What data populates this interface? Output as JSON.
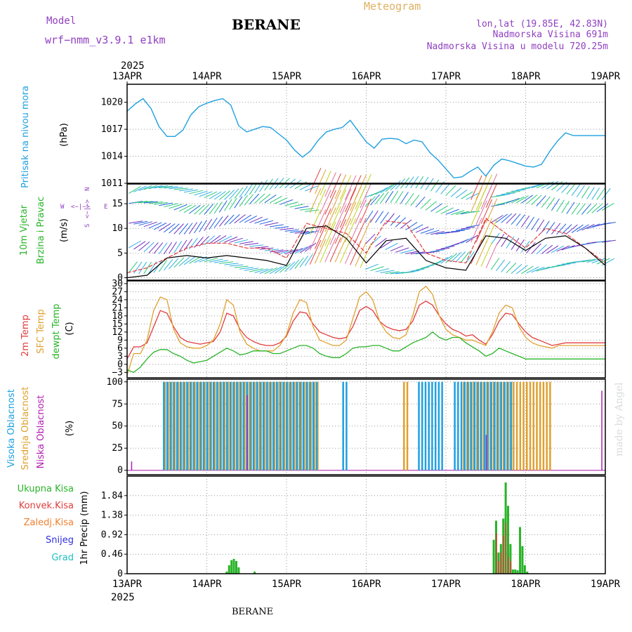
{
  "header": {
    "model_label": "Model",
    "model_name": "wrf−nmm_v3.9.1  e1km",
    "station": "BERANE",
    "product": "Meteogram",
    "coords": "lon,lat (19.85E, 42.83N)",
    "elevation": "Nadmorska Visina 691m",
    "model_elevation": "Nadmorska Visina u modelu 720.25m",
    "footer_station": "BERANE",
    "watermark": "made by Angel"
  },
  "colors": {
    "pressure": "#1fa0e0",
    "temp2m": "#e03c3c",
    "sfctemp": "#e0a030",
    "dewpt": "#28b428",
    "cloud_high": "#1fa0e0",
    "cloud_mid": "#e0a030",
    "cloud_low": "#b020b0",
    "precip_total": "#28b428",
    "precip_conv": "#e03c3c",
    "precip_frozen": "#f08030",
    "snow": "#3030e0",
    "hail": "#20c0c0",
    "title_purple": "#9040c0",
    "meteogram_orange": "#e0b060",
    "wind_gust": "#e03c3c",
    "wind_mean": "#000000"
  },
  "chart_data": [
    {
      "type": "line",
      "panel": "pressure",
      "ylabel": "Pritisak na nivou mora",
      "yunit": "(hPa)",
      "ylim": [
        1011,
        1022
      ],
      "yticks": [
        "1011",
        "1014",
        "1017",
        "1020"
      ],
      "x_day_offsets": [
        0,
        0.1,
        0.2,
        0.3,
        0.4,
        0.5,
        0.6,
        0.7,
        0.8,
        0.9,
        1.0,
        1.1,
        1.2,
        1.3,
        1.4,
        1.5,
        1.6,
        1.7,
        1.8,
        1.9,
        2.0,
        2.1,
        2.2,
        2.3,
        2.4,
        2.5,
        2.6,
        2.7,
        2.8,
        2.9,
        3.0,
        3.1,
        3.2,
        3.3,
        3.4,
        3.5,
        3.6,
        3.7,
        3.8,
        3.9,
        4.0,
        4.1,
        4.2,
        4.3,
        4.4,
        4.5,
        4.6,
        4.7,
        4.8,
        4.9,
        5.0,
        5.1,
        5.2,
        5.3,
        5.4,
        5.5,
        5.6,
        5.7,
        5.8,
        5.9,
        6.0
      ],
      "series": [
        {
          "name": "Pritisak na nivou mora",
          "values": [
            1019.0,
            1019.8,
            1020.4,
            1019.3,
            1017.3,
            1016.2,
            1016.2,
            1016.9,
            1018.6,
            1019.5,
            1019.9,
            1020.2,
            1020.4,
            1019.7,
            1017.4,
            1016.7,
            1017.0,
            1017.3,
            1017.2,
            1016.5,
            1015.8,
            1014.7,
            1013.9,
            1014.6,
            1015.8,
            1016.7,
            1017.0,
            1017.2,
            1018.0,
            1016.8,
            1015.6,
            1014.9,
            1015.9,
            1016.0,
            1015.9,
            1015.4,
            1015.8,
            1015.6,
            1014.4,
            1013.6,
            1012.6,
            1011.6,
            1011.7,
            1012.3,
            1012.8,
            1011.8,
            1013.0,
            1013.7,
            1013.5,
            1013.2,
            1012.9,
            1012.8,
            1013.1,
            1014.5,
            1015.7,
            1016.6,
            1016.3,
            1016.3,
            1016.3,
            1016.3,
            1016.3
          ]
        }
      ]
    },
    {
      "type": "line",
      "panel": "wind",
      "ylabel_line1": "10m Vjetar",
      "ylabel_line2": "Brzina i Pravac",
      "yunit": "(m/s)",
      "compass": [
        "W",
        "<−|−>",
        "E",
        "S",
        "<−|−>",
        "N"
      ],
      "ylim": [
        -0.5,
        19
      ],
      "yticks": [
        "0",
        "5",
        "10",
        "15"
      ],
      "x_day_offsets": [
        0,
        0.25,
        0.5,
        0.75,
        1.0,
        1.25,
        1.5,
        1.75,
        2.0,
        2.25,
        2.5,
        2.75,
        3.0,
        3.25,
        3.5,
        3.75,
        4.0,
        4.25,
        4.5,
        4.75,
        5.0,
        5.25,
        5.5,
        5.75,
        6.0
      ],
      "series": [
        {
          "name": "gust",
          "values": [
            1.0,
            2.0,
            4.0,
            6.0,
            7.0,
            7.0,
            6.0,
            6.0,
            4.0,
            11.0,
            10.0,
            9.0,
            5.0,
            11.5,
            11.0,
            5.0,
            3.5,
            3.0,
            12.0,
            9.0,
            6.0,
            10.0,
            9.0,
            6.0,
            3.0
          ]
        },
        {
          "name": "mean",
          "values": [
            0.0,
            0.5,
            4.0,
            4.5,
            4.0,
            4.5,
            4.0,
            3.5,
            2.5,
            10.0,
            10.5,
            8.0,
            3.0,
            7.5,
            8.0,
            3.5,
            2.0,
            1.5,
            8.5,
            8.0,
            5.5,
            8.0,
            8.5,
            6.0,
            2.5
          ]
        }
      ]
    },
    {
      "type": "line",
      "panel": "temperature",
      "ylabels": [
        "2m Temp",
        "SFC Temp",
        "dewpt Temp"
      ],
      "yunit": "(C)",
      "ylim": [
        -5,
        31
      ],
      "yticks": [
        "−3",
        "0",
        "3",
        "6",
        "9",
        "12",
        "15",
        "18",
        "21",
        "24",
        "27",
        "30"
      ],
      "x_day_offsets": [
        0,
        0.083,
        0.167,
        0.25,
        0.333,
        0.417,
        0.5,
        0.583,
        0.667,
        0.75,
        0.833,
        0.917,
        1.0,
        1.083,
        1.167,
        1.25,
        1.333,
        1.417,
        1.5,
        1.583,
        1.667,
        1.75,
        1.833,
        1.917,
        2.0,
        2.083,
        2.167,
        2.25,
        2.333,
        2.417,
        2.5,
        2.583,
        2.667,
        2.75,
        2.833,
        2.917,
        3.0,
        3.083,
        3.167,
        3.25,
        3.333,
        3.417,
        3.5,
        3.583,
        3.667,
        3.75,
        3.833,
        3.917,
        4.0,
        4.083,
        4.167,
        4.25,
        4.333,
        4.417,
        4.5,
        4.583,
        4.667,
        4.75,
        4.833,
        4.917,
        5.0,
        5.083,
        5.167,
        5.25,
        5.333,
        5.417,
        5.5,
        5.583,
        5.667,
        5.75,
        5.833,
        5.917,
        6.0
      ],
      "series": [
        {
          "name": "2m Temp",
          "values": [
            2.0,
            6.5,
            6.5,
            8.0,
            14.0,
            20.0,
            19.0,
            14.0,
            10.0,
            8.5,
            8.0,
            7.5,
            8.0,
            8.5,
            12.0,
            19.0,
            18.0,
            13.0,
            10.0,
            8.5,
            7.5,
            7.0,
            7.0,
            8.0,
            10.5,
            16.0,
            19.5,
            19.0,
            15.0,
            12.0,
            11.0,
            10.0,
            9.5,
            10.0,
            14.0,
            20.0,
            21.5,
            20.0,
            16.0,
            14.0,
            13.0,
            12.5,
            13.0,
            16.0,
            22.0,
            23.5,
            22.0,
            18.0,
            15.0,
            13.0,
            12.0,
            10.5,
            11.0,
            9.0,
            7.5,
            11.0,
            16.0,
            19.0,
            18.5,
            15.0,
            12.0,
            10.0,
            9.0,
            8.0,
            7.0,
            7.5,
            8.0,
            8.0,
            8.0,
            8.0,
            8.0,
            8.0,
            8.0
          ]
        },
        {
          "name": "SFC Temp",
          "values": [
            -4.0,
            4.0,
            4.0,
            9.0,
            20.0,
            25.0,
            24.0,
            13.0,
            8.0,
            6.5,
            6.0,
            6.0,
            7.0,
            9.0,
            15.0,
            24.0,
            22.0,
            12.0,
            7.5,
            6.0,
            5.0,
            5.0,
            5.0,
            7.0,
            11.0,
            19.0,
            24.0,
            23.0,
            14.0,
            9.0,
            8.0,
            7.0,
            7.0,
            9.0,
            17.0,
            25.0,
            27.0,
            24.0,
            16.0,
            12.0,
            10.0,
            9.5,
            11.0,
            18.0,
            27.0,
            29.0,
            26.0,
            18.0,
            13.0,
            11.0,
            10.0,
            9.0,
            9.0,
            8.0,
            7.0,
            12.0,
            19.0,
            22.0,
            21.0,
            14.0,
            10.0,
            8.0,
            7.0,
            6.5,
            6.0,
            7.0,
            7.0,
            7.0,
            7.0,
            7.0,
            7.0,
            7.0,
            7.0
          ]
        },
        {
          "name": "dewpt Temp",
          "values": [
            -2.0,
            -3.0,
            -1.0,
            2.0,
            4.5,
            5.5,
            5.5,
            4.0,
            3.0,
            1.5,
            0.5,
            1.0,
            1.5,
            3.0,
            4.5,
            6.0,
            5.0,
            3.5,
            4.0,
            5.0,
            5.0,
            5.0,
            4.0,
            4.0,
            5.0,
            6.0,
            7.0,
            7.0,
            6.0,
            4.0,
            3.0,
            2.5,
            2.5,
            4.0,
            6.0,
            6.5,
            6.5,
            7.0,
            7.0,
            6.0,
            5.0,
            5.0,
            6.5,
            8.0,
            9.0,
            10.0,
            12.0,
            10.0,
            9.0,
            10.0,
            10.0,
            8.0,
            6.5,
            5.0,
            3.0,
            4.0,
            6.0,
            5.0,
            4.0,
            3.0,
            2.0,
            2.0,
            2.0,
            2.0,
            2.0,
            2.0,
            2.0,
            2.0,
            2.0,
            2.0,
            2.0,
            2.0,
            2.0
          ]
        }
      ]
    },
    {
      "type": "bar",
      "panel": "clouds",
      "ylabels": [
        "Visoka Oblacnost",
        "Srednja Oblacnost",
        "Niska Oblacnost"
      ],
      "yunit": "(%)",
      "ylim": [
        0,
        100
      ],
      "yticks": [
        "0",
        "25",
        "50",
        "75",
        "100"
      ],
      "high_cloud_spans_days": [
        [
          0.45,
          2.4
        ],
        [
          2.7,
          2.75
        ],
        [
          3.65,
          3.95
        ],
        [
          4.1,
          4.85
        ]
      ],
      "mid_cloud_spans_days": [
        [
          0.45,
          2.4
        ],
        [
          3.45,
          3.5
        ],
        [
          4.2,
          5.3
        ]
      ],
      "high_cloud_level_pct": 100,
      "mid_cloud_level_pct": 100,
      "low_cloud_spikes": [
        {
          "x_day": 0.05,
          "value": 10
        },
        {
          "x_day": 1.5,
          "value": 85
        },
        {
          "x_day": 4.5,
          "value": 40
        },
        {
          "x_day": 5.95,
          "value": 90
        }
      ]
    },
    {
      "type": "bar",
      "panel": "precip",
      "ylabels": [
        "Ukupna Kisa",
        "Konvek.Kisa",
        "Zaledj.Kisa",
        "Snijeg",
        "Grad"
      ],
      "yunit": "1hr Precip (mm)",
      "ylim": [
        0,
        2.3
      ],
      "yticks": [
        "0",
        "0.46",
        "0.92",
        "1.38",
        "1.84"
      ],
      "x_day_offsets": [
        1.25,
        1.28,
        1.31,
        1.34,
        1.37,
        1.4,
        1.6,
        4.6,
        4.63,
        4.66,
        4.69,
        4.72,
        4.75,
        4.78,
        4.81,
        4.84,
        4.87,
        4.9,
        4.93,
        4.96,
        4.99,
        5.02
      ],
      "series": [
        {
          "name": "Ukupna Kisa",
          "values": [
            0.05,
            0.2,
            0.32,
            0.35,
            0.3,
            0.15,
            0.05,
            0.8,
            1.25,
            0.5,
            0.7,
            1.3,
            2.15,
            1.6,
            0.7,
            0.1,
            0.1,
            0.08,
            1.1,
            0.65,
            0.2,
            0.05
          ]
        },
        {
          "name": "Konvek.Kisa",
          "values": [
            0,
            0,
            0,
            0,
            0,
            0,
            0,
            0,
            0.95,
            0.3,
            0.5,
            0.9,
            1.2,
            0.4,
            0.3,
            0,
            0,
            0,
            0,
            0,
            0,
            0
          ]
        }
      ]
    }
  ],
  "x_axis": {
    "year": "2025",
    "labels": [
      "13APR",
      "14APR",
      "15APR",
      "16APR",
      "17APR",
      "18APR",
      "19APR"
    ]
  }
}
